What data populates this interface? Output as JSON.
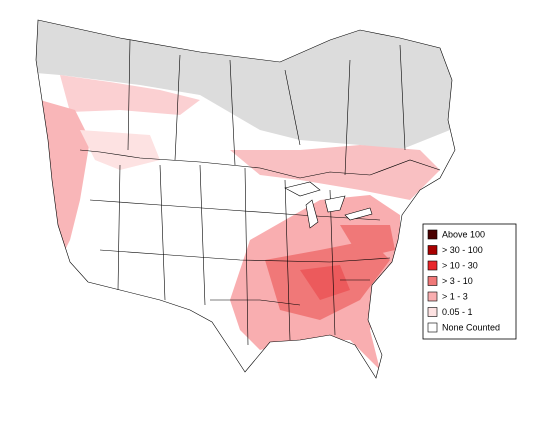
{
  "legend": {
    "items": [
      {
        "label": "Above 100",
        "color": "#4a0000"
      },
      {
        "label": "> 30 - 100",
        "color": "#a80000"
      },
      {
        "label": "> 10 - 30",
        "color": "#e8262a"
      },
      {
        "label": "> 3 - 10",
        "color": "#f07878"
      },
      {
        "label": "> 1 - 3",
        "color": "#f9aeb0"
      },
      {
        "label": "0.05 - 1",
        "color": "#fde2e2"
      },
      {
        "label": "None Counted",
        "color": "#ffffff"
      }
    ]
  }
}
